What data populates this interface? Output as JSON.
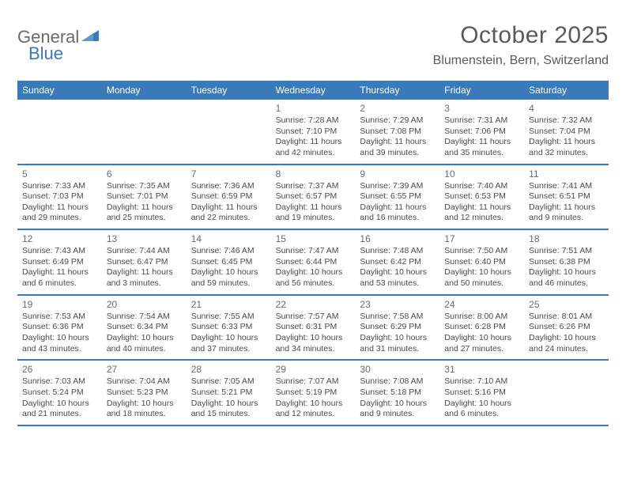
{
  "logo": {
    "word1": "General",
    "word2": "Blue"
  },
  "title": "October 2025",
  "location": "Blumenstein, Bern, Switzerland",
  "weekdays": [
    "Sunday",
    "Monday",
    "Tuesday",
    "Wednesday",
    "Thursday",
    "Friday",
    "Saturday"
  ],
  "colors": {
    "brand_blue": "#3a7ab8",
    "text_gray": "#4a4a4a",
    "background": "#ffffff"
  },
  "weeks": [
    [
      null,
      null,
      null,
      {
        "n": "1",
        "sr": "7:28 AM",
        "ss": "7:10 PM",
        "dl1": "Daylight: 11 hours",
        "dl2": "and 42 minutes."
      },
      {
        "n": "2",
        "sr": "7:29 AM",
        "ss": "7:08 PM",
        "dl1": "Daylight: 11 hours",
        "dl2": "and 39 minutes."
      },
      {
        "n": "3",
        "sr": "7:31 AM",
        "ss": "7:06 PM",
        "dl1": "Daylight: 11 hours",
        "dl2": "and 35 minutes."
      },
      {
        "n": "4",
        "sr": "7:32 AM",
        "ss": "7:04 PM",
        "dl1": "Daylight: 11 hours",
        "dl2": "and 32 minutes."
      }
    ],
    [
      {
        "n": "5",
        "sr": "7:33 AM",
        "ss": "7:03 PM",
        "dl1": "Daylight: 11 hours",
        "dl2": "and 29 minutes."
      },
      {
        "n": "6",
        "sr": "7:35 AM",
        "ss": "7:01 PM",
        "dl1": "Daylight: 11 hours",
        "dl2": "and 25 minutes."
      },
      {
        "n": "7",
        "sr": "7:36 AM",
        "ss": "6:59 PM",
        "dl1": "Daylight: 11 hours",
        "dl2": "and 22 minutes."
      },
      {
        "n": "8",
        "sr": "7:37 AM",
        "ss": "6:57 PM",
        "dl1": "Daylight: 11 hours",
        "dl2": "and 19 minutes."
      },
      {
        "n": "9",
        "sr": "7:39 AM",
        "ss": "6:55 PM",
        "dl1": "Daylight: 11 hours",
        "dl2": "and 16 minutes."
      },
      {
        "n": "10",
        "sr": "7:40 AM",
        "ss": "6:53 PM",
        "dl1": "Daylight: 11 hours",
        "dl2": "and 12 minutes."
      },
      {
        "n": "11",
        "sr": "7:41 AM",
        "ss": "6:51 PM",
        "dl1": "Daylight: 11 hours",
        "dl2": "and 9 minutes."
      }
    ],
    [
      {
        "n": "12",
        "sr": "7:43 AM",
        "ss": "6:49 PM",
        "dl1": "Daylight: 11 hours",
        "dl2": "and 6 minutes."
      },
      {
        "n": "13",
        "sr": "7:44 AM",
        "ss": "6:47 PM",
        "dl1": "Daylight: 11 hours",
        "dl2": "and 3 minutes."
      },
      {
        "n": "14",
        "sr": "7:46 AM",
        "ss": "6:45 PM",
        "dl1": "Daylight: 10 hours",
        "dl2": "and 59 minutes."
      },
      {
        "n": "15",
        "sr": "7:47 AM",
        "ss": "6:44 PM",
        "dl1": "Daylight: 10 hours",
        "dl2": "and 56 minutes."
      },
      {
        "n": "16",
        "sr": "7:48 AM",
        "ss": "6:42 PM",
        "dl1": "Daylight: 10 hours",
        "dl2": "and 53 minutes."
      },
      {
        "n": "17",
        "sr": "7:50 AM",
        "ss": "6:40 PM",
        "dl1": "Daylight: 10 hours",
        "dl2": "and 50 minutes."
      },
      {
        "n": "18",
        "sr": "7:51 AM",
        "ss": "6:38 PM",
        "dl1": "Daylight: 10 hours",
        "dl2": "and 46 minutes."
      }
    ],
    [
      {
        "n": "19",
        "sr": "7:53 AM",
        "ss": "6:36 PM",
        "dl1": "Daylight: 10 hours",
        "dl2": "and 43 minutes."
      },
      {
        "n": "20",
        "sr": "7:54 AM",
        "ss": "6:34 PM",
        "dl1": "Daylight: 10 hours",
        "dl2": "and 40 minutes."
      },
      {
        "n": "21",
        "sr": "7:55 AM",
        "ss": "6:33 PM",
        "dl1": "Daylight: 10 hours",
        "dl2": "and 37 minutes."
      },
      {
        "n": "22",
        "sr": "7:57 AM",
        "ss": "6:31 PM",
        "dl1": "Daylight: 10 hours",
        "dl2": "and 34 minutes."
      },
      {
        "n": "23",
        "sr": "7:58 AM",
        "ss": "6:29 PM",
        "dl1": "Daylight: 10 hours",
        "dl2": "and 31 minutes."
      },
      {
        "n": "24",
        "sr": "8:00 AM",
        "ss": "6:28 PM",
        "dl1": "Daylight: 10 hours",
        "dl2": "and 27 minutes."
      },
      {
        "n": "25",
        "sr": "8:01 AM",
        "ss": "6:26 PM",
        "dl1": "Daylight: 10 hours",
        "dl2": "and 24 minutes."
      }
    ],
    [
      {
        "n": "26",
        "sr": "7:03 AM",
        "ss": "5:24 PM",
        "dl1": "Daylight: 10 hours",
        "dl2": "and 21 minutes."
      },
      {
        "n": "27",
        "sr": "7:04 AM",
        "ss": "5:23 PM",
        "dl1": "Daylight: 10 hours",
        "dl2": "and 18 minutes."
      },
      {
        "n": "28",
        "sr": "7:05 AM",
        "ss": "5:21 PM",
        "dl1": "Daylight: 10 hours",
        "dl2": "and 15 minutes."
      },
      {
        "n": "29",
        "sr": "7:07 AM",
        "ss": "5:19 PM",
        "dl1": "Daylight: 10 hours",
        "dl2": "and 12 minutes."
      },
      {
        "n": "30",
        "sr": "7:08 AM",
        "ss": "5:18 PM",
        "dl1": "Daylight: 10 hours",
        "dl2": "and 9 minutes."
      },
      {
        "n": "31",
        "sr": "7:10 AM",
        "ss": "5:16 PM",
        "dl1": "Daylight: 10 hours",
        "dl2": "and 6 minutes."
      },
      null
    ]
  ]
}
